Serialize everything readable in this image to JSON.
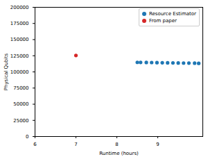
{
  "chart_data": {
    "type": "scatter",
    "x_label": "Runtime (hours)",
    "y_label": "Physical Qubits",
    "series": [
      {
        "name": "Resource Estimator",
        "color": "#1f77b4",
        "marker": "circle",
        "x": [
          8.5,
          8.58,
          8.72,
          8.85,
          8.98,
          9.11,
          9.24,
          9.37,
          9.5,
          9.63,
          9.76,
          9.9,
          10.0
        ],
        "values": [
          114800,
          114700,
          114600,
          114500,
          114300,
          114200,
          114100,
          114000,
          113800,
          113700,
          113600,
          113500,
          113300
        ]
      },
      {
        "name": "From paper",
        "color": "#d62728",
        "marker": "circle",
        "x": [
          7
        ],
        "values": [
          125500
        ]
      }
    ],
    "xlim": [
      6,
      10.1
    ],
    "xticks": [
      6,
      7,
      8,
      9
    ],
    "ylim": [
      0,
      200000
    ],
    "yticks": [
      0,
      25000,
      50000,
      75000,
      100000,
      125000,
      150000,
      175000,
      200000
    ],
    "grid": false,
    "legend": "upper right"
  }
}
